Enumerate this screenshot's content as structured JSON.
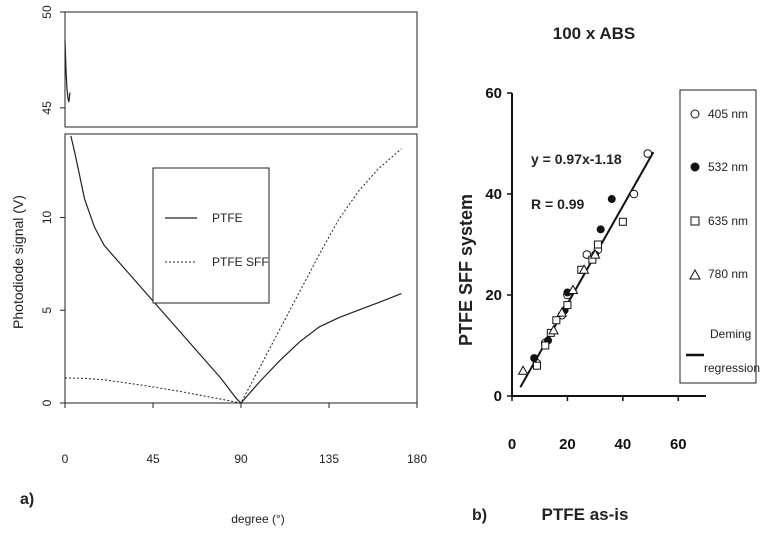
{
  "panel_a": {
    "tag": "a)",
    "xlabel": "degree (°)",
    "ylabel": "Photodiode signal (V)",
    "legend": [
      "PTFE",
      "PTFE SFF"
    ]
  },
  "panel_b": {
    "tag": "b)",
    "title": "100 x ABS",
    "xlabel": "PTFE as-is",
    "ylabel": "PTFE  SFF  system",
    "equation": "y = 0.97x-1.18",
    "r_value": "R = 0.99",
    "legend": [
      "405 nm",
      "532 nm",
      "635 nm",
      "780 nm",
      "Deming regression"
    ]
  },
  "chart_data": [
    {
      "type": "line",
      "panel": "a",
      "xlabel": "degree (°)",
      "ylabel": "Photodiode signal (V)",
      "xlim": [
        0,
        180
      ],
      "x_ticks": [
        "0",
        "45",
        "90",
        "135",
        "180"
      ],
      "ylim_lower": [
        0,
        14.5
      ],
      "y_ticks_lower": [
        "0",
        "5",
        "10"
      ],
      "ylim_upper": [
        44,
        50
      ],
      "y_ticks_upper": [
        "45",
        "50"
      ],
      "legend_position": "center",
      "series": [
        {
          "name": "PTFE",
          "style": "solid",
          "x": [
            0,
            0.5,
            1,
            1.5,
            2,
            2.5,
            3,
            5,
            10,
            15,
            20,
            30,
            40,
            50,
            60,
            70,
            80,
            85,
            88,
            90,
            95,
            100,
            110,
            120,
            130,
            140,
            150,
            160,
            172
          ],
          "y": [
            48.5,
            47,
            46,
            45.5,
            45.3,
            45.8,
            14.4,
            13.5,
            11,
            9.5,
            8.5,
            7.3,
            6.1,
            4.9,
            3.7,
            2.5,
            1.3,
            0.6,
            0.2,
            0,
            0.6,
            1.2,
            2.3,
            3.3,
            4.1,
            4.6,
            5.0,
            5.4,
            5.9
          ]
        },
        {
          "name": "PTFE SFF",
          "style": "dashed",
          "x": [
            0,
            10,
            20,
            30,
            40,
            50,
            60,
            70,
            80,
            90,
            100,
            110,
            120,
            130,
            140,
            150,
            160,
            172
          ],
          "y": [
            1.35,
            1.33,
            1.25,
            1.1,
            0.95,
            0.78,
            0.6,
            0.4,
            0.2,
            0,
            2.0,
            4.0,
            6.0,
            8.0,
            9.9,
            11.4,
            12.6,
            13.7
          ]
        }
      ]
    },
    {
      "type": "scatter",
      "panel": "b",
      "title": "100 x ABS",
      "xlabel": "PTFE as-is",
      "ylabel": "PTFE  SFF  system",
      "xlim": [
        0,
        70
      ],
      "ylim": [
        0,
        60
      ],
      "x_ticks": [
        "0",
        "20",
        "40",
        "60"
      ],
      "y_ticks": [
        "0",
        "20",
        "40",
        "60"
      ],
      "legend_position": "right",
      "annotations": [
        "y = 0.97x-1.18",
        "R = 0.99"
      ],
      "series": [
        {
          "name": "405 nm",
          "marker": "open-circle",
          "x": [
            9,
            12,
            18,
            20,
            27,
            31,
            44,
            49
          ],
          "y": [
            6.5,
            10.5,
            16,
            20,
            28,
            29,
            40,
            48
          ]
        },
        {
          "name": "532 nm",
          "marker": "filled-circle",
          "x": [
            8,
            13,
            19,
            20,
            30,
            32,
            36
          ],
          "y": [
            7.5,
            11,
            17,
            20.5,
            28,
            33,
            39
          ]
        },
        {
          "name": "635 nm",
          "marker": "open-square",
          "x": [
            9,
            12,
            14,
            16,
            20,
            25,
            29,
            31,
            40
          ],
          "y": [
            6,
            10,
            12.5,
            15,
            18,
            25,
            27,
            30,
            34.5
          ]
        },
        {
          "name": "780 nm",
          "marker": "open-triangle",
          "x": [
            4,
            15,
            18,
            22,
            26,
            30
          ],
          "y": [
            5,
            13,
            16.5,
            21,
            25,
            28
          ]
        },
        {
          "name": "Deming regression",
          "marker": "line",
          "x": [
            3,
            51
          ],
          "y": [
            1.73,
            48.29
          ]
        }
      ]
    }
  ]
}
